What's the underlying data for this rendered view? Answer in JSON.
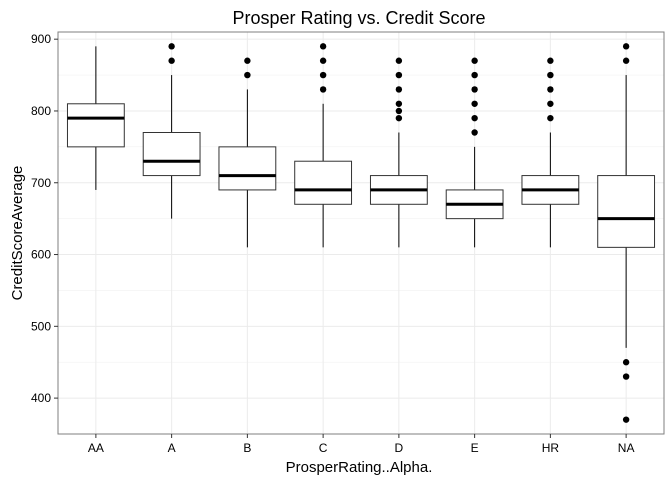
{
  "chart_data": {
    "type": "boxplot",
    "title": "Prosper Rating vs. Credit Score",
    "xlabel": "ProsperRating..Alpha.",
    "ylabel": "CreditScoreAverage",
    "ylim": [
      350,
      910
    ],
    "yticks": [
      400,
      500,
      600,
      700,
      800,
      900
    ],
    "grid": true,
    "theme": "bw",
    "colors": {
      "box_fill": "#ffffff",
      "stroke": "#000000",
      "grid": "#ebebeb",
      "panel_border": "#7f7f7f"
    },
    "categories": [
      "AA",
      "A",
      "B",
      "C",
      "D",
      "E",
      "HR",
      "NA"
    ],
    "boxes": [
      {
        "category": "AA",
        "whisker_low": 690,
        "q1": 750,
        "median": 790,
        "q3": 810,
        "whisker_high": 890,
        "outliers": []
      },
      {
        "category": "A",
        "whisker_low": 650,
        "q1": 710,
        "median": 730,
        "q3": 770,
        "whisker_high": 850,
        "outliers": [
          870,
          890
        ]
      },
      {
        "category": "B",
        "whisker_low": 610,
        "q1": 690,
        "median": 710,
        "q3": 750,
        "whisker_high": 830,
        "outliers": [
          850,
          870
        ]
      },
      {
        "category": "C",
        "whisker_low": 610,
        "q1": 670,
        "median": 690,
        "q3": 730,
        "whisker_high": 810,
        "outliers": [
          830,
          850,
          870,
          890
        ]
      },
      {
        "category": "D",
        "whisker_low": 610,
        "q1": 670,
        "median": 690,
        "q3": 710,
        "whisker_high": 770,
        "outliers": [
          790,
          800,
          810,
          830,
          850,
          870
        ]
      },
      {
        "category": "E",
        "whisker_low": 610,
        "q1": 650,
        "median": 670,
        "q3": 690,
        "whisker_high": 750,
        "outliers": [
          770,
          790,
          810,
          830,
          850,
          870
        ]
      },
      {
        "category": "HR",
        "whisker_low": 610,
        "q1": 670,
        "median": 690,
        "q3": 710,
        "whisker_high": 770,
        "outliers": [
          790,
          810,
          830,
          850,
          870
        ]
      },
      {
        "category": "NA",
        "whisker_low": 470,
        "q1": 610,
        "median": 650,
        "q3": 710,
        "whisker_high": 850,
        "outliers": [
          370,
          430,
          450,
          870,
          890
        ]
      }
    ]
  }
}
